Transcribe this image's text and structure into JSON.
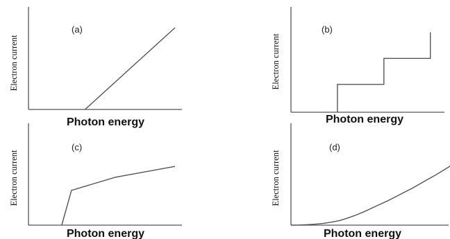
{
  "chart_data": [
    {
      "id": "a",
      "type": "line",
      "panel_label": "(a)",
      "xlabel": "Photon energy",
      "ylabel": "Electron current",
      "xlim": [
        0,
        10
      ],
      "ylim": [
        0,
        10
      ],
      "grid": false,
      "series": [
        {
          "x": [
            3.0,
            10.0
          ],
          "y": [
            0,
            10.0
          ]
        }
      ]
    },
    {
      "id": "b",
      "type": "line",
      "panel_label": "(b)",
      "xlabel": "Photon energy",
      "ylabel": "Electron current",
      "xlim": [
        0,
        10
      ],
      "ylim": [
        0,
        10
      ],
      "grid": false,
      "series": [
        {
          "x": [
            3.0,
            3.0,
            6.0,
            6.0,
            9.0,
            9.0
          ],
          "y": [
            0,
            3.0,
            3.0,
            5.8,
            5.8,
            8.6
          ]
        }
      ]
    },
    {
      "id": "c",
      "type": "line",
      "panel_label": "(c)",
      "xlabel": "Photon energy",
      "ylabel": "Electron current",
      "xlim": [
        0,
        10
      ],
      "ylim": [
        0,
        10
      ],
      "grid": false,
      "series": [
        {
          "x": [
            3.0,
            3.6,
            6.3,
            10.0
          ],
          "y": [
            0,
            3.2,
            4.4,
            5.4
          ]
        }
      ]
    },
    {
      "id": "d",
      "type": "line",
      "panel_label": "(d)",
      "xlabel": "Photon energy",
      "ylabel": "Electron current",
      "xlim": [
        0,
        10
      ],
      "ylim": [
        0,
        10
      ],
      "grid": false,
      "series": [
        {
          "x": [
            0,
            0.5,
            1.0,
            1.5,
            2.0,
            2.5,
            3.0,
            3.5,
            4.0,
            4.5,
            5.0,
            5.5,
            6.0,
            6.5,
            7.0,
            7.5,
            8.0,
            8.5,
            9.0,
            9.5,
            10.0
          ],
          "y": [
            0,
            0.02,
            0.06,
            0.12,
            0.22,
            0.36,
            0.55,
            0.85,
            1.2,
            1.6,
            2.05,
            2.5,
            2.95,
            3.45,
            3.95,
            4.45,
            5.0,
            5.55,
            6.1,
            6.7,
            7.3
          ]
        }
      ]
    }
  ]
}
